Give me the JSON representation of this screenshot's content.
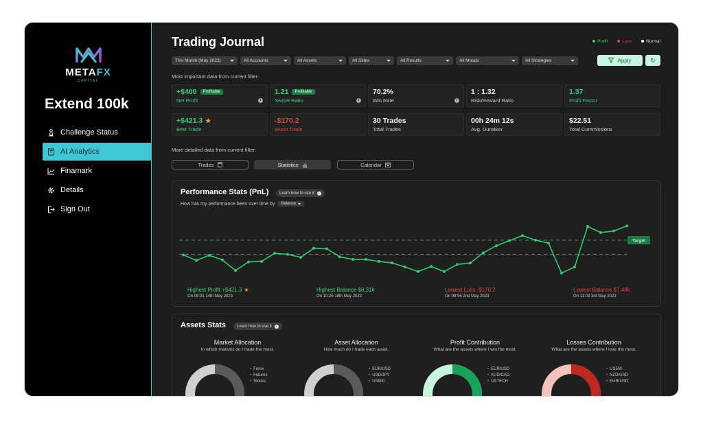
{
  "brand": {
    "name_a": "META",
    "name_b": "FX",
    "sub": "CAPITAL"
  },
  "sidebar": {
    "account_title": "Extend 100k",
    "items": [
      {
        "label": "Challenge Status",
        "icon": "chess-pawn-icon"
      },
      {
        "label": "AI Analytics",
        "icon": "notebook-icon",
        "active": true
      },
      {
        "label": "Finamark",
        "icon": "line-chart-icon"
      },
      {
        "label": "Details",
        "icon": "gear-icon"
      },
      {
        "label": "Sign Out",
        "icon": "sign-out-icon"
      }
    ]
  },
  "header": {
    "title": "Trading Journal",
    "legend": [
      {
        "label": "Profit",
        "color": "#3ecf7c"
      },
      {
        "label": "Loss",
        "color": "#e0483b"
      },
      {
        "label": "Normal",
        "color": "#ffffff"
      }
    ]
  },
  "filters": [
    "This Month (May 2023)",
    "All Accounts",
    "All Assets",
    "All Sides",
    "All Results",
    "All Moods",
    "All Strategies"
  ],
  "apply_label": "Apply",
  "reset_icon": "↻",
  "labels": {
    "important": "Most important data from current filter:",
    "detailed": "More detailed data from current filter:"
  },
  "stats_row1": [
    {
      "value": "+$400",
      "label": "Net Profit",
      "tag": "Profitable",
      "tone": "green",
      "info": true
    },
    {
      "value": "1.21",
      "label": "Swiset Ratio",
      "tag": "Profitable",
      "tone": "green",
      "info": true
    },
    {
      "value": "70.2%",
      "label": "Win Rate",
      "tag": "",
      "tone": "white",
      "info": true
    },
    {
      "value": "1 : 1.32",
      "label": "Risk/Reward Ratio",
      "tag": "",
      "tone": "white",
      "info": false
    },
    {
      "value": "1.37",
      "label": "Profit Factor",
      "tag": "",
      "tone": "green",
      "info": false
    }
  ],
  "stats_row2": [
    {
      "value": "+$421.3",
      "label": "Best Trade",
      "tone": "green",
      "star": "★"
    },
    {
      "value": "-$170.2",
      "label": "Worst Trade",
      "tone": "red"
    },
    {
      "value": "30 Trades",
      "label": "Total Trades",
      "tone": "white"
    },
    {
      "value": "00h 24m 12s",
      "label": "Avg. Duration",
      "tone": "white"
    },
    {
      "value": "$22.51",
      "label": "Total Commissions",
      "tone": "white"
    }
  ],
  "tabs": [
    {
      "label": "Trades",
      "icon": "database-icon"
    },
    {
      "label": "Statistics",
      "icon": "bar-chart-icon",
      "active": true
    },
    {
      "label": "Calendar",
      "icon": "calendar-icon"
    }
  ],
  "performance": {
    "title": "Performance Stats (PnL)",
    "learn": "Learn how to use it",
    "subtitle": "How has my performance been over time by",
    "select": "Balance",
    "target_label": "Target",
    "highlights": [
      {
        "title": "Highest Profit +$421.3",
        "star": "★",
        "sub": "On 08:31 14th May 2023",
        "tone": "green"
      },
      {
        "title": "Highest Balance $8.31k",
        "sub": "On 10:25 18th May 2023",
        "tone": "green"
      },
      {
        "title": "Lowest Loss -$170.2",
        "sub": "On 08:55 2nd May 2023",
        "tone": "red"
      },
      {
        "title": "Lowest Balance $7.48k",
        "sub": "On 11:03 3rd May 2023",
        "tone": "red"
      }
    ]
  },
  "chart_data": {
    "type": "line",
    "series": [
      {
        "values": [
          55,
          44,
          54,
          45,
          24,
          41,
          42,
          58,
          56,
          50,
          68,
          67,
          51,
          46,
          46,
          42,
          39,
          31,
          22,
          32,
          22,
          36,
          39,
          59,
          73,
          83,
          93,
          84,
          78,
          19,
          31,
          111,
          99,
          102,
          112
        ]
      }
    ],
    "target": 84,
    "baseline": 56,
    "ylim": [
      0,
      130
    ]
  },
  "assets": {
    "title": "Assets Stats",
    "learn": "Learn how to use it",
    "donuts": [
      {
        "title": "Market Allocation",
        "sub": "In which markets do I trade the most.",
        "legend": [
          "Forex",
          "Futures",
          "Stocks"
        ],
        "colors": [
          "#5a5a5a",
          "#cfcfcf"
        ]
      },
      {
        "title": "Asset Allocation",
        "sub": "How much do I trade each asset.",
        "legend": [
          "EUR/USD",
          "USD/JPY",
          "US500"
        ],
        "colors": [
          "#5a5a5a",
          "#cfcfcf"
        ]
      },
      {
        "title": "Profit Contribution",
        "sub": "What are the assets where I win the most.",
        "legend": [
          "EUR/USD",
          "AUD/CAD",
          "USTECH"
        ],
        "colors": [
          "#19a35a",
          "#c7f5df"
        ]
      },
      {
        "title": "Losses Contribution",
        "sub": "What are the assets where I lose the most.",
        "legend": [
          "US500",
          "NZD/USD",
          "EUR/USD"
        ],
        "colors": [
          "#c0271f",
          "#f4c2bd"
        ]
      }
    ]
  }
}
